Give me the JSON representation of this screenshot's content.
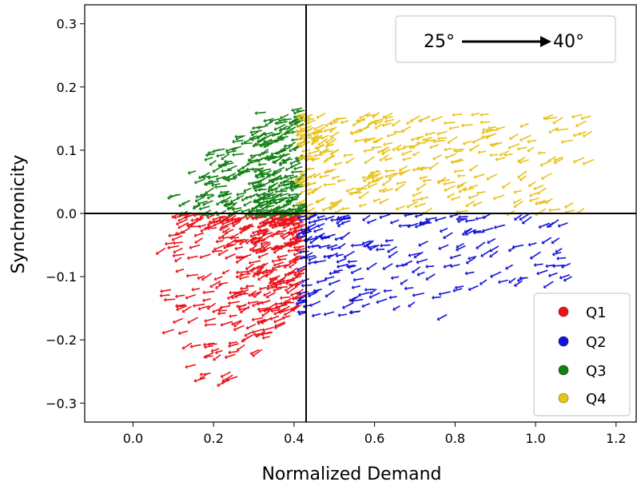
{
  "chart_data": {
    "type": "scatter",
    "xlabel": "Normalized Demand",
    "ylabel": "Synchronicity",
    "xlim": [
      -0.12,
      1.25
    ],
    "ylim": [
      -0.33,
      0.33
    ],
    "x_ticks": [
      0.0,
      0.2,
      0.4,
      0.6,
      0.8,
      1.0,
      1.2
    ],
    "x_tick_labels": [
      "0.0",
      "0.2",
      "0.4",
      "0.6",
      "0.8",
      "1.0",
      "1.2"
    ],
    "y_ticks": [
      -0.3,
      -0.2,
      -0.1,
      0.0,
      0.1,
      0.2,
      0.3
    ],
    "y_tick_labels": [
      "−0.3",
      "−0.2",
      "−0.1",
      "0.0",
      "0.1",
      "0.2",
      "0.3"
    ],
    "reference_lines": {
      "vertical_x": 0.43,
      "horizontal_y": 0.0
    },
    "temperature_annotation": {
      "from_label": "25°",
      "to_label": "40°"
    },
    "legend": {
      "placement": "lower-right"
    },
    "series": [
      {
        "name": "Q1",
        "color": "#e8141c",
        "count": 400,
        "x_range": [
          0.08,
          0.43
        ],
        "y_range": [
          -0.27,
          0.0
        ],
        "sample_points": [
          [
            0.08,
            -0.055
          ],
          [
            0.12,
            -0.07
          ],
          [
            0.13,
            -0.03
          ],
          [
            0.18,
            -0.26
          ],
          [
            0.2,
            -0.22
          ],
          [
            0.22,
            -0.15
          ],
          [
            0.25,
            -0.05
          ],
          [
            0.3,
            -0.08
          ],
          [
            0.33,
            -0.19
          ],
          [
            0.35,
            -0.18
          ],
          [
            0.38,
            -0.1
          ],
          [
            0.42,
            -0.03
          ]
        ]
      },
      {
        "name": "Q2",
        "color": "#1414d8",
        "count": 200,
        "x_range": [
          0.43,
          1.1
        ],
        "y_range": [
          -0.17,
          0.0
        ],
        "sample_points": [
          [
            0.45,
            -0.04
          ],
          [
            0.5,
            -0.1
          ],
          [
            0.55,
            -0.06
          ],
          [
            0.6,
            -0.12
          ],
          [
            0.7,
            -0.14
          ],
          [
            0.78,
            -0.16
          ],
          [
            0.85,
            -0.07
          ],
          [
            0.9,
            -0.04
          ],
          [
            0.97,
            -0.05
          ],
          [
            1.03,
            -0.09
          ],
          [
            1.08,
            -0.015
          ]
        ]
      },
      {
        "name": "Q3",
        "color": "#138013",
        "count": 300,
        "x_range": [
          0.11,
          0.43
        ],
        "y_range": [
          0.0,
          0.17
        ],
        "sample_points": [
          [
            0.11,
            0.03
          ],
          [
            0.2,
            0.03
          ],
          [
            0.25,
            0.08
          ],
          [
            0.3,
            0.12
          ],
          [
            0.33,
            0.16
          ],
          [
            0.35,
            0.15
          ],
          [
            0.38,
            0.1
          ],
          [
            0.42,
            0.05
          ]
        ]
      },
      {
        "name": "Q4",
        "color": "#e8c21a",
        "count": 300,
        "x_range": [
          0.43,
          1.15
        ],
        "y_range": [
          0.0,
          0.16
        ],
        "sample_points": [
          [
            0.45,
            0.15
          ],
          [
            0.5,
            0.12
          ],
          [
            0.6,
            0.09
          ],
          [
            0.7,
            0.15
          ],
          [
            0.8,
            0.05
          ],
          [
            0.87,
            0.12
          ],
          [
            0.96,
            0.11
          ],
          [
            1.0,
            0.05
          ],
          [
            1.05,
            0.09
          ],
          [
            1.14,
            0.13
          ]
        ]
      }
    ]
  }
}
